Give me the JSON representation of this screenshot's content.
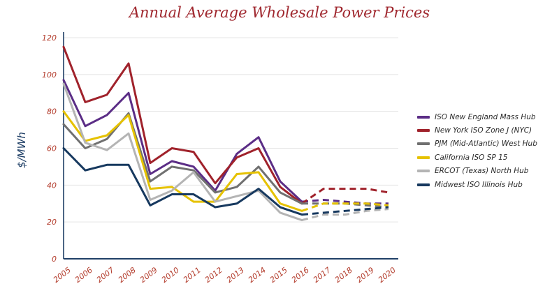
{
  "chart_data": {
    "type": "line",
    "title": "Annual Average Wholesale Power Prices",
    "ylabel": "$/MWh",
    "xlabel": "",
    "ylim": [
      0,
      120
    ],
    "yticks": [
      0,
      20,
      40,
      60,
      80,
      100,
      120
    ],
    "categories": [
      "2005",
      "2006",
      "2007",
      "2008",
      "2009",
      "2010",
      "2011",
      "2012",
      "2013",
      "2014",
      "2015",
      "2016",
      "2017",
      "2018",
      "2019",
      "2020"
    ],
    "forecast_start": "2016",
    "legend_position": "right",
    "grid": true,
    "series": [
      {
        "name": "ISO New England Mass Hub",
        "color": "#5b2d86",
        "values": [
          97,
          72,
          78,
          90,
          46,
          53,
          50,
          37,
          57,
          66,
          42,
          31,
          32,
          31,
          30,
          30
        ]
      },
      {
        "name": "New York ISO Zone J (NYC)",
        "color": "#a0222b",
        "values": [
          115,
          85,
          89,
          106,
          52,
          60,
          58,
          41,
          55,
          60,
          39,
          30,
          38,
          38,
          38,
          36
        ]
      },
      {
        "name": "PJM (Mid-Atlantic) West Hub",
        "color": "#707070",
        "values": [
          73,
          60,
          65,
          79,
          42,
          50,
          48,
          36,
          39,
          50,
          36,
          30,
          30,
          30,
          29,
          28
        ]
      },
      {
        "name": "California ISO SP 15",
        "color": "#e6c200",
        "values": [
          80,
          64,
          67,
          78,
          38,
          39,
          31,
          31,
          46,
          47,
          30,
          26,
          30,
          30,
          30,
          29
        ]
      },
      {
        "name": "ERCOT (Texas) North Hub",
        "color": "#b4b4b4",
        "values": [
          95,
          63,
          59,
          68,
          32,
          37,
          47,
          31,
          34,
          37,
          25,
          21,
          24,
          24,
          26,
          27
        ]
      },
      {
        "name": "Midwest ISO Illinois Hub",
        "color": "#17395f",
        "values": [
          60,
          48,
          51,
          51,
          29,
          35,
          35,
          28,
          30,
          38,
          28,
          24,
          25,
          26,
          27,
          28
        ]
      }
    ]
  }
}
